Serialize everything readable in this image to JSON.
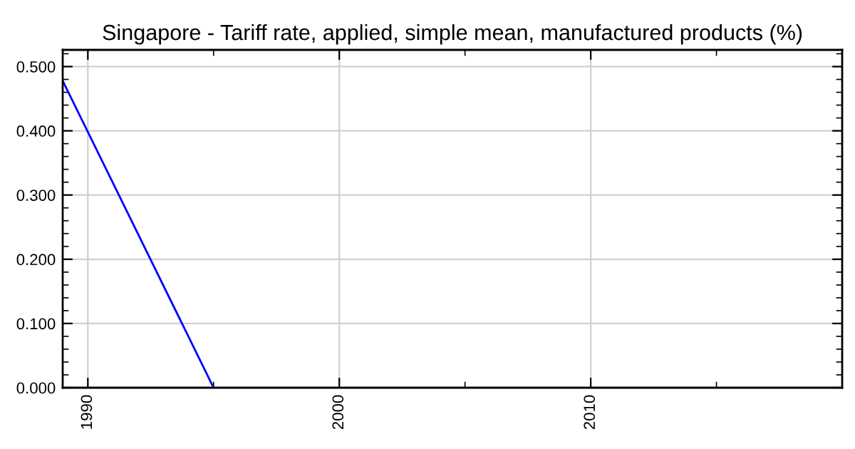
{
  "chart_data": {
    "type": "line",
    "title": "Singapore - Tariff rate, applied, simple mean, manufactured products (%)",
    "x": [
      1989,
      1995
    ],
    "series": [
      {
        "color": "#0000ff",
        "values": [
          0.478,
          0.0
        ]
      }
    ],
    "xlim": [
      1989,
      2020
    ],
    "ylim": [
      0,
      0.526
    ],
    "xticks": [
      1990,
      {
        "value": 1995,
        "label": null
      },
      2000,
      {
        "value": 2005,
        "label": null
      },
      2010,
      {
        "value": 2015,
        "label": null
      }
    ],
    "yticks": [
      {
        "value": 0,
        "label": "0.000"
      },
      {
        "value": 0.02,
        "label": null
      },
      {
        "value": 0.04,
        "label": null
      },
      {
        "value": 0.06,
        "label": null
      },
      {
        "value": 0.08,
        "label": null
      },
      {
        "value": 0.1,
        "label": "0.100"
      },
      {
        "value": 0.12,
        "label": null
      },
      {
        "value": 0.14,
        "label": null
      },
      {
        "value": 0.16,
        "label": null
      },
      {
        "value": 0.18,
        "label": null
      },
      {
        "value": 0.2,
        "label": "0.200"
      },
      {
        "value": 0.22,
        "label": null
      },
      {
        "value": 0.24,
        "label": null
      },
      {
        "value": 0.26,
        "label": null
      },
      {
        "value": 0.28,
        "label": null
      },
      {
        "value": 0.3,
        "label": "0.300"
      },
      {
        "value": 0.32,
        "label": null
      },
      {
        "value": 0.34,
        "label": null
      },
      {
        "value": 0.36,
        "label": null
      },
      {
        "value": 0.38,
        "label": null
      },
      {
        "value": 0.4,
        "label": "0.400"
      },
      {
        "value": 0.42,
        "label": null
      },
      {
        "value": 0.44,
        "label": null
      },
      {
        "value": 0.46,
        "label": null
      },
      {
        "value": 0.48,
        "label": null
      },
      {
        "value": 0.5,
        "label": "0.500"
      },
      {
        "value": 0.52,
        "label": null
      }
    ],
    "grid": true
  }
}
